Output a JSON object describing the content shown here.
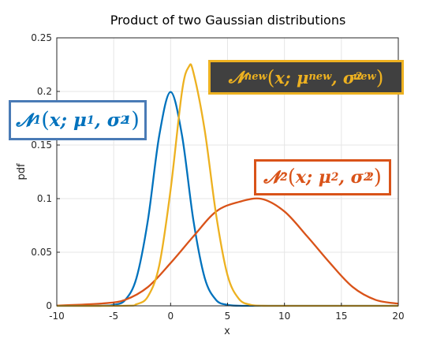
{
  "chart_data": {
    "type": "line",
    "title": "Product of two Gaussian distributions",
    "xlabel": "x",
    "ylabel": "pdf",
    "xlim": [
      -10,
      20
    ],
    "ylim": [
      0,
      0.25
    ],
    "xticks": [
      "-10",
      "-5",
      "0",
      "5",
      "10",
      "15",
      "20"
    ],
    "yticks": [
      "0",
      "0.05",
      "0.1",
      "0.15",
      "0.2",
      "0.25"
    ],
    "grid": true,
    "series": [
      {
        "color": "#0072bd",
        "x": [
          -10,
          -8,
          -6,
          -5,
          -4,
          -3,
          -2,
          -1,
          0,
          1,
          2,
          3,
          4,
          5,
          6,
          7,
          8,
          10,
          20
        ],
        "y": [
          0.0,
          0.0,
          0.0001,
          0.0009,
          0.0054,
          0.0259,
          0.0798,
          0.1588,
          0.1995,
          0.1588,
          0.0798,
          0.0259,
          0.0054,
          0.0009,
          0.0001,
          0.0,
          0.0,
          0.0,
          0.0
        ]
      },
      {
        "color": "#d95319",
        "x": [
          -10,
          -6,
          -4,
          -2,
          0,
          2,
          4,
          6,
          8,
          10,
          12,
          14,
          16,
          18,
          20
        ],
        "y": [
          0.0002,
          0.0022,
          0.0056,
          0.0175,
          0.0399,
          0.0648,
          0.088,
          0.0969,
          0.0997,
          0.088,
          0.0648,
          0.0399,
          0.0175,
          0.0056,
          0.002
        ]
      },
      {
        "color": "#edb120",
        "x": [
          -10,
          -4,
          -3,
          -2,
          -1,
          0,
          1,
          1.6,
          2,
          3,
          4,
          5,
          6,
          7,
          8,
          10,
          20
        ],
        "y": [
          0.0,
          0.0001,
          0.0015,
          0.0087,
          0.0377,
          0.1083,
          0.2001,
          0.223,
          0.2178,
          0.1635,
          0.0846,
          0.0285,
          0.0065,
          0.001,
          0.0001,
          0.0,
          0.0
        ]
      }
    ]
  },
  "labels": {
    "n1": {
      "symbol": "𝓝",
      "sub": "1",
      "x": "x",
      "mu": "μ",
      "mu_sub": "1",
      "sigma": "σ",
      "sigma_sub": "1",
      "sigma_sup": "2",
      "color": "#0072bd",
      "border": "#4a7bb6"
    },
    "n2": {
      "symbol": "𝓝",
      "sub": "2",
      "x": "x",
      "mu": "μ",
      "mu_sub": "2",
      "sigma": "σ",
      "sigma_sub": "2",
      "sigma_sup": "2",
      "color": "#d95319",
      "border": "#d95319"
    },
    "nnew": {
      "symbol": "𝓝",
      "sub": "new",
      "x": "x",
      "mu": "μ",
      "mu_sub": "new",
      "sigma": "σ",
      "sigma_sub": "new",
      "sigma_sup": "2",
      "color": "#edb120",
      "background": "#404040"
    }
  }
}
